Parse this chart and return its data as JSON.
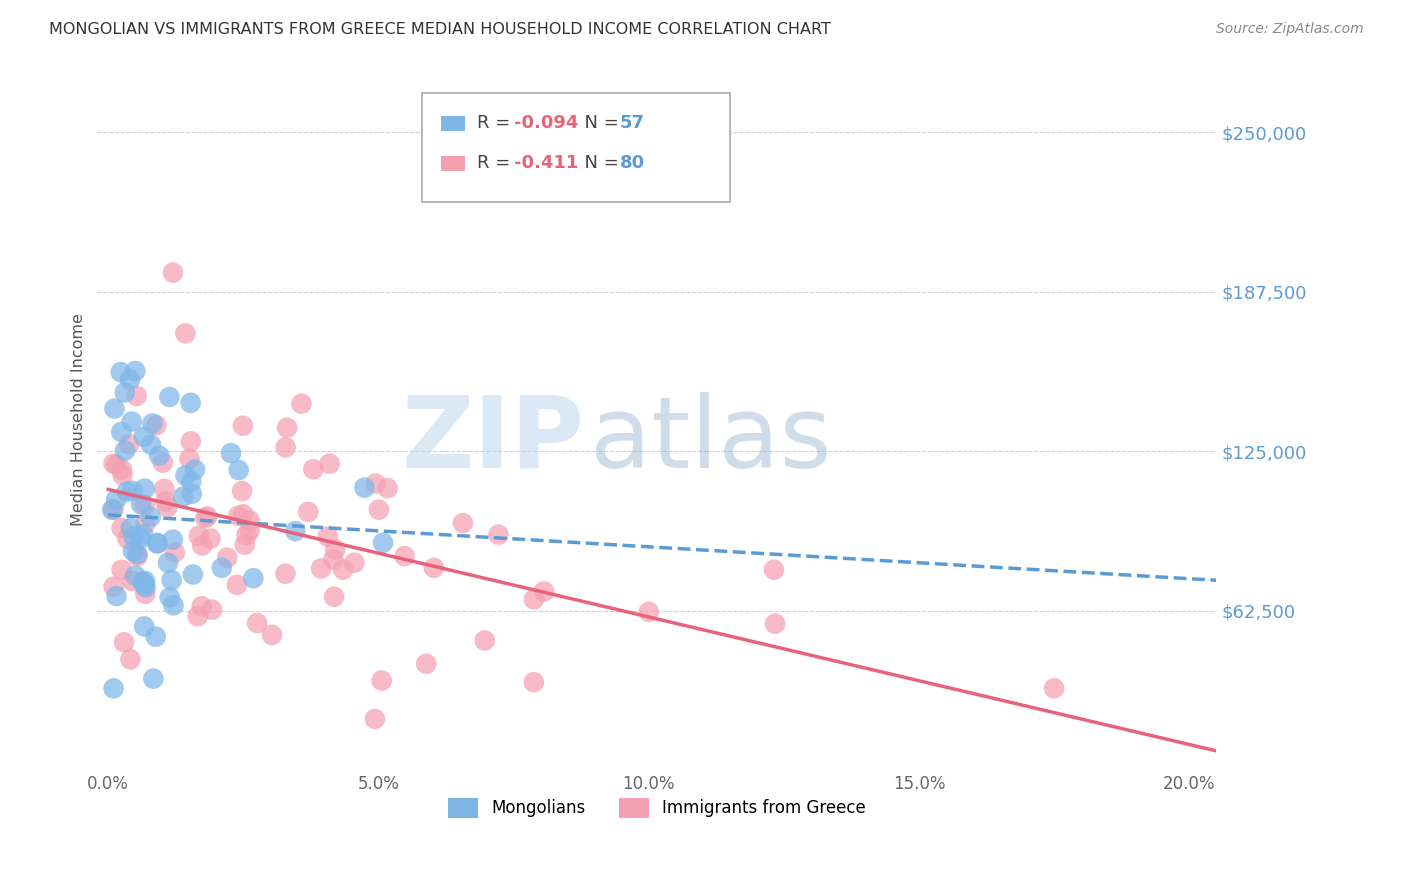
{
  "title": "MONGOLIAN VS IMMIGRANTS FROM GREECE MEDIAN HOUSEHOLD INCOME CORRELATION CHART",
  "source": "Source: ZipAtlas.com",
  "ylabel": "Median Household Income",
  "xlabel_ticks": [
    "0.0%",
    "5.0%",
    "10.0%",
    "15.0%",
    "20.0%"
  ],
  "xlabel_vals": [
    0.0,
    0.05,
    0.1,
    0.15,
    0.2
  ],
  "ytick_labels": [
    "$62,500",
    "$125,000",
    "$187,500",
    "$250,000"
  ],
  "ytick_vals": [
    62500,
    125000,
    187500,
    250000
  ],
  "ylim": [
    0,
    275000
  ],
  "xlim": [
    -0.002,
    0.205
  ],
  "mongolian_color": "#7EB6E8",
  "greek_color": "#F4A0B0",
  "mongolian_R": -0.094,
  "mongolian_N": 57,
  "greek_R": -0.411,
  "greek_N": 80,
  "legend_label_mongolian": "Mongolians",
  "legend_label_greek": "Immigrants from Greece",
  "watermark_zip": "ZIP",
  "watermark_atlas": "atlas",
  "background_color": "#ffffff",
  "grid_color": "#d0d0d0",
  "title_color": "#333333",
  "ytick_color": "#5B9BD5",
  "trend_line_mongolian_color": "#5B9BD5",
  "trend_line_greek_color": "#E8637A",
  "legend_R_color": "#E8637A",
  "legend_N_color": "#5B9BD5"
}
